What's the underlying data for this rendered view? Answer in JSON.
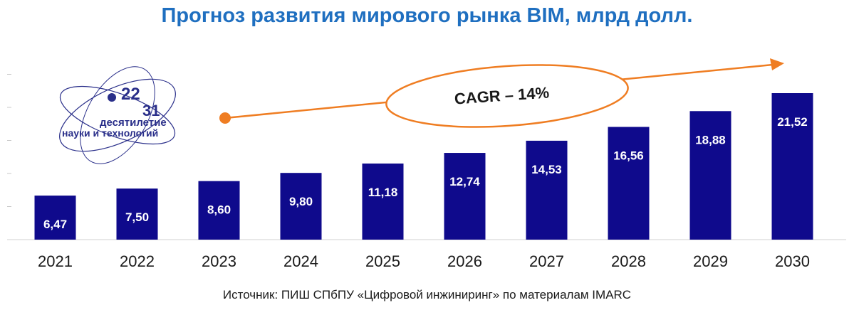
{
  "chart_data": {
    "type": "bar",
    "title": "Прогноз развития мирового рынка BIM, млрд долл.",
    "categories": [
      "2021",
      "2022",
      "2023",
      "2024",
      "2025",
      "2026",
      "2027",
      "2028",
      "2029",
      "2030"
    ],
    "values": [
      6.47,
      7.5,
      8.6,
      9.8,
      11.18,
      12.74,
      14.53,
      16.56,
      18.88,
      21.52
    ],
    "value_labels": [
      "6,47",
      "7,50",
      "8,60",
      "9,80",
      "11,18",
      "12,74",
      "14,53",
      "16,56",
      "18,88",
      "21,52"
    ],
    "ylim": [
      0,
      25
    ],
    "xlabel": "",
    "ylabel": "",
    "annotation": "CAGR – 14%"
  },
  "source": "Источник: ПИШ СПбПУ «Цифровой инжиниринг» по материалам IMARC",
  "logo": {
    "number_top": "22",
    "number_bottom": "31",
    "line1": "десятилетие",
    "line2": "науки и технологий"
  },
  "colors": {
    "bar": "#0f0a8c",
    "title": "#1f6fc0",
    "accent": "#ef7d22",
    "logo": "#2a2f8a"
  }
}
